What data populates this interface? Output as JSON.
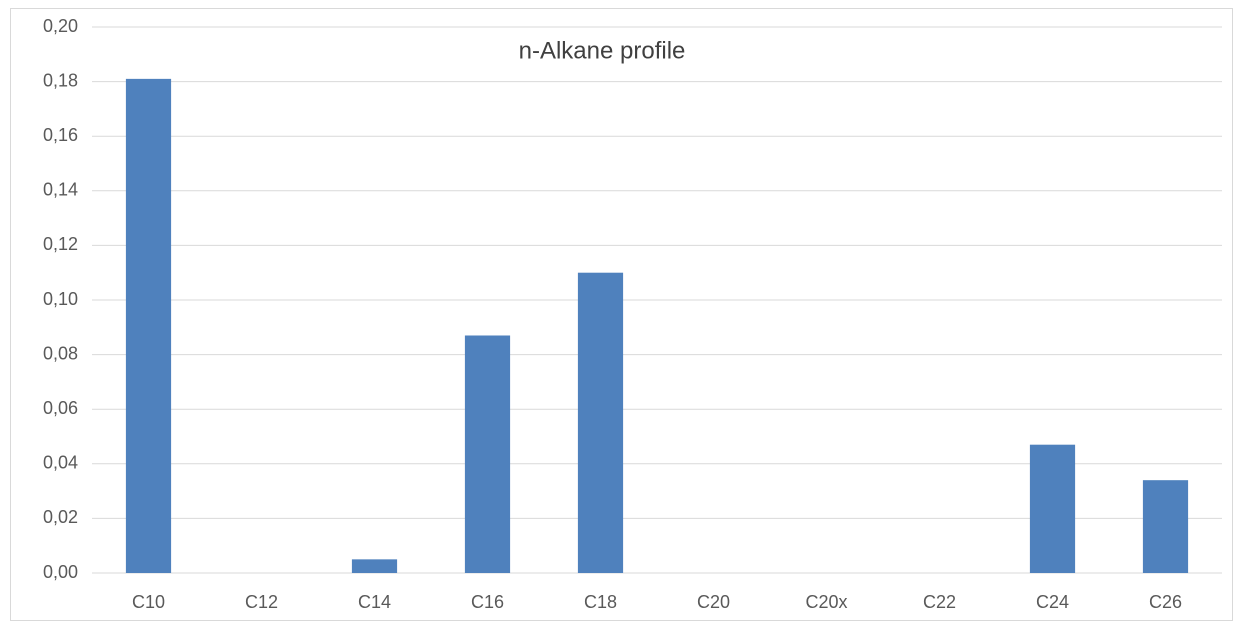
{
  "chart_data": {
    "type": "bar",
    "title": "n-Alkane profile",
    "categories": [
      "C10",
      "C12",
      "C14",
      "C16",
      "C18",
      "C20",
      "C20x",
      "C22",
      "C24",
      "C26"
    ],
    "values": [
      0.181,
      0,
      0.005,
      0.087,
      0.11,
      0,
      0,
      0,
      0.047,
      0.034
    ],
    "color": "#4f81bd",
    "ylim": [
      0,
      0.2
    ],
    "yticks": [
      {
        "value": 0,
        "label": "0,00"
      },
      {
        "value": 0.02,
        "label": "0,02"
      },
      {
        "value": 0.04,
        "label": "0,04"
      },
      {
        "value": 0.06,
        "label": "0,06"
      },
      {
        "value": 0.08,
        "label": "0,08"
      },
      {
        "value": 0.1,
        "label": "0,10"
      },
      {
        "value": 0.12,
        "label": "0,12"
      },
      {
        "value": 0.14,
        "label": "0,14"
      },
      {
        "value": 0.16,
        "label": "0,16"
      },
      {
        "value": 0.18,
        "label": "0,18"
      },
      {
        "value": 0.2,
        "label": "0,20"
      }
    ],
    "grid": true
  }
}
